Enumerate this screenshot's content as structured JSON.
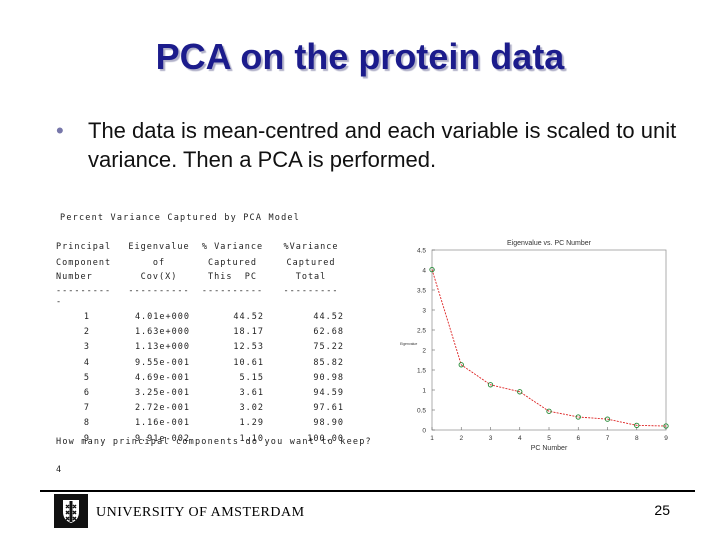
{
  "slide": {
    "title": "PCA on the protein data",
    "bullet": "The data is mean-centred and each variable is scaled to unit variance. Then a PCA is performed.",
    "page_number": "25",
    "footer_text": "UNIVERSITY OF AMSTERDAM"
  },
  "table": {
    "caption": "Percent Variance Captured by PCA Model",
    "headers": [
      [
        "Principal",
        "Component",
        "Number",
        "---------"
      ],
      [
        "Eigenvalue",
        "of",
        "Cov(X)",
        "----------"
      ],
      [
        "% Variance",
        "Captured",
        "This  PC",
        "----------"
      ],
      [
        "%Variance",
        "Captured",
        "Total",
        "---------"
      ]
    ],
    "dash_extra": "-",
    "rows": [
      [
        "1",
        "4.01e+000",
        "44.52",
        "44.52"
      ],
      [
        "2",
        "1.63e+000",
        "18.17",
        "62.68"
      ],
      [
        "3",
        "1.13e+000",
        "12.53",
        "75.22"
      ],
      [
        "4",
        "9.55e-001",
        "10.61",
        "85.82"
      ],
      [
        "5",
        "4.69e-001",
        "5.15",
        "90.98"
      ],
      [
        "6",
        "3.25e-001",
        "3.61",
        "94.59"
      ],
      [
        "7",
        "2.72e-001",
        "3.02",
        "97.61"
      ],
      [
        "8",
        "1.16e-001",
        "1.29",
        "98.90"
      ],
      [
        "9",
        "9.91e-002",
        "1.10",
        "100.00"
      ]
    ],
    "prompt": "How many principal components do you want to keep?",
    "answer": "4"
  },
  "chart_data": {
    "type": "line",
    "title": "Eigenvalue vs. PC Number",
    "xlabel": "PC Number",
    "ylabel": "Eigenvalue",
    "x": [
      1,
      2,
      3,
      4,
      5,
      6,
      7,
      8,
      9
    ],
    "values": [
      4.01,
      1.63,
      1.13,
      0.955,
      0.469,
      0.325,
      0.272,
      0.116,
      0.0991
    ],
    "xlim": [
      1,
      9
    ],
    "ylim": [
      0,
      4.5
    ],
    "xticks": [
      1,
      2,
      3,
      4,
      5,
      6,
      7,
      8,
      9
    ],
    "yticks": [
      0,
      0.5,
      1,
      1.5,
      2,
      2.5,
      3,
      3.5,
      4,
      4.5
    ],
    "ytick_labels": [
      "0",
      "0.5",
      "1",
      "1.5",
      "2",
      "2.5",
      "3",
      "3.5",
      "4",
      "4.5"
    ],
    "line_color": "#dd2222",
    "marker_color": "#228833",
    "grid": false
  }
}
